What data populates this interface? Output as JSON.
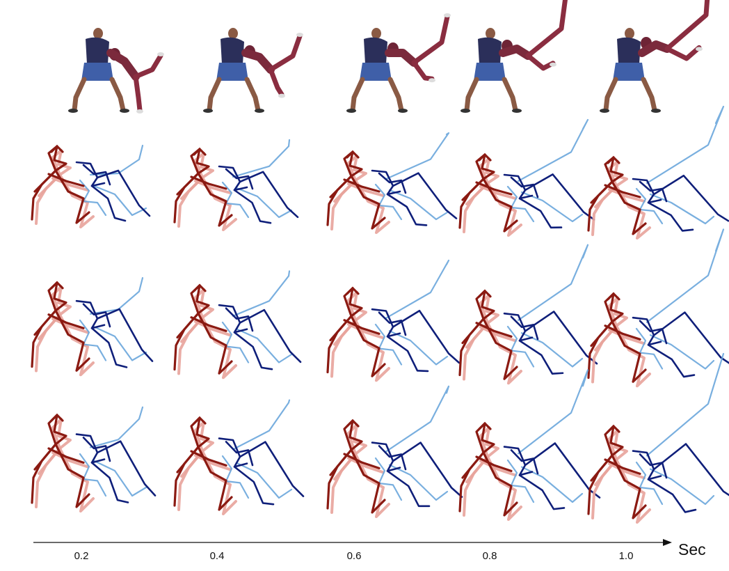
{
  "timeline": {
    "ticks": [
      "0.2",
      "0.4",
      "0.6",
      "0.8",
      "1.0"
    ],
    "unit_label": "Sec"
  },
  "photos": [
    {
      "label": "frame-0.2"
    },
    {
      "label": "frame-0.4"
    },
    {
      "label": "frame-0.6"
    },
    {
      "label": "frame-0.8"
    },
    {
      "label": "frame-1.0"
    }
  ],
  "colors": {
    "dark_red": "#8b1a12",
    "light_red": "#e8a39b",
    "dark_blue": "#0f1f7a",
    "light_blue": "#6aa6dc",
    "axis": "#111111"
  }
}
